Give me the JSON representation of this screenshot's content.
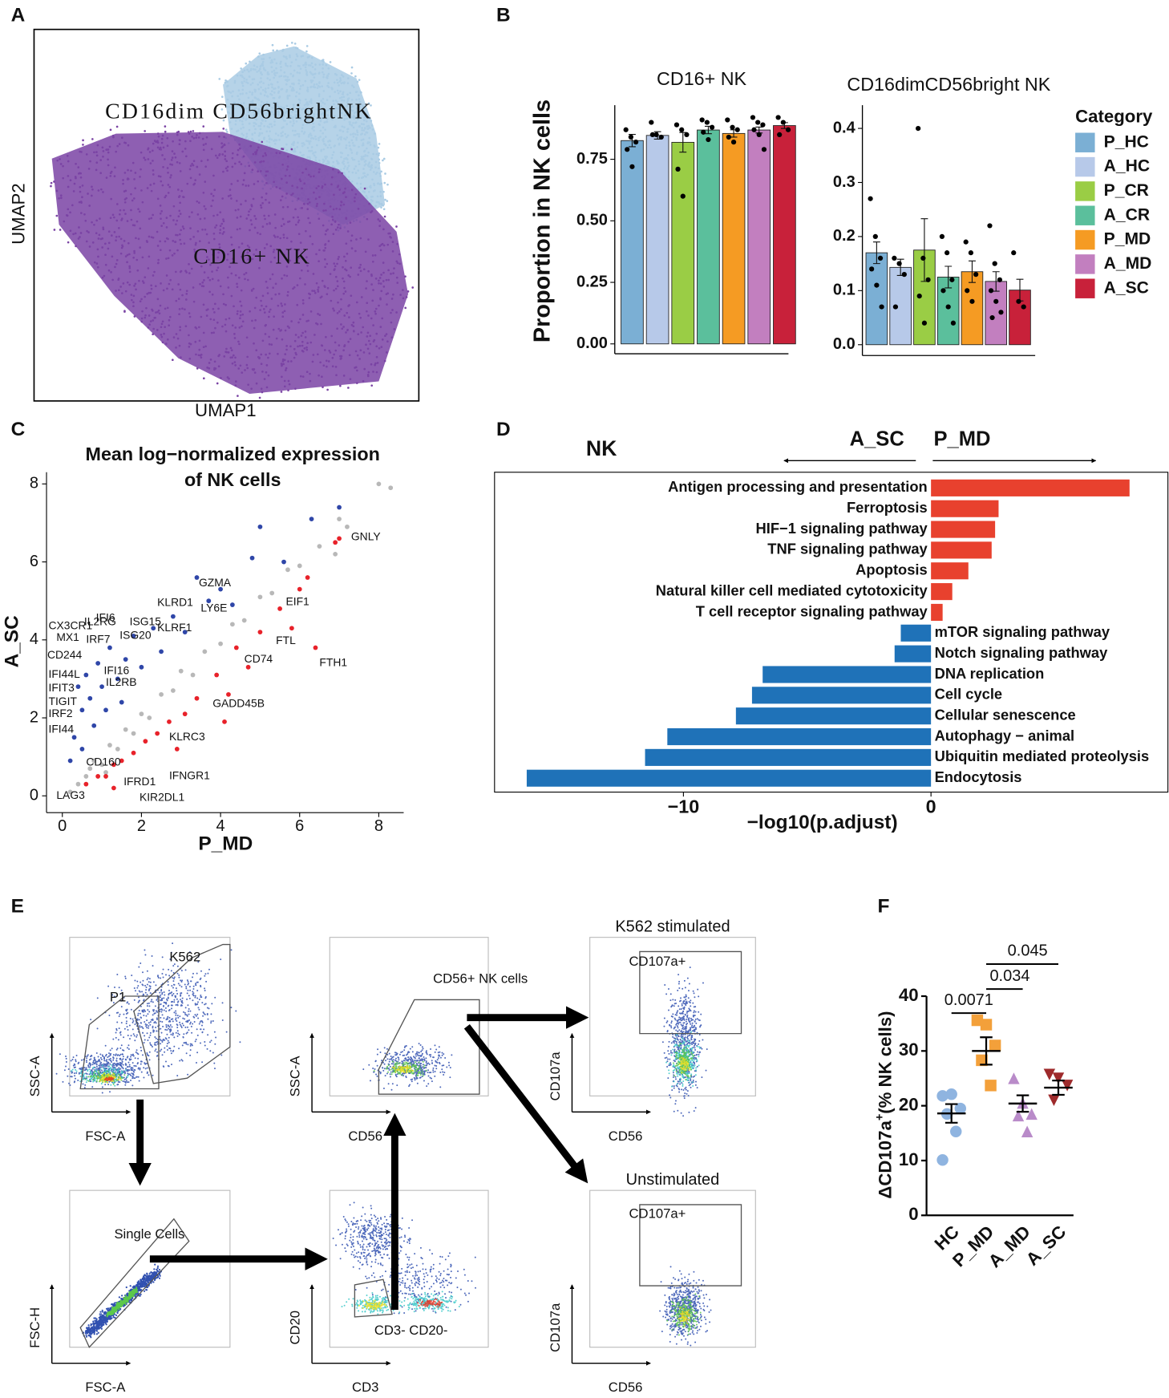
{
  "panel_labels": [
    "A",
    "B",
    "C",
    "D",
    "E",
    "F"
  ],
  "legend": {
    "title": "Category",
    "labels": [
      "P_HC",
      "A_HC",
      "P_CR",
      "A_CR",
      "P_MD",
      "A_MD",
      "A_SC"
    ],
    "colors": [
      "#7bafd4",
      "#b7c9e9",
      "#9acd45",
      "#5bbf9c",
      "#f59b23",
      "#c27fbf",
      "#c8213a"
    ]
  },
  "chart_data": [
    {
      "type": "embedding",
      "x_label": "UMAP1",
      "y_label": "UMAP2",
      "clusters": [
        {
          "name": "CD16dim CD56brightNK",
          "color": "#a9cbe4"
        },
        {
          "name": "CD16+ NK",
          "color": "#7a43a4"
        }
      ]
    },
    {
      "type": "bar",
      "title": "CD16+ NK",
      "y_label": "Proportion in NK cells",
      "values": [
        0.826,
        0.847,
        0.819,
        0.869,
        0.855,
        0.869,
        0.887
      ],
      "errors": [
        0.025,
        0.015,
        0.04,
        0.015,
        0.015,
        0.012,
        0.012
      ],
      "points": [
        [
          0.87,
          0.84,
          0.82,
          0.79,
          0.72
        ],
        [
          0.9,
          0.85,
          0.84,
          0.85
        ],
        [
          0.89,
          0.87,
          0.85,
          0.71,
          0.6
        ],
        [
          0.91,
          0.9,
          0.88,
          0.86,
          0.83
        ],
        [
          0.91,
          0.88,
          0.87,
          0.84,
          0.82
        ],
        [
          0.92,
          0.9,
          0.89,
          0.87,
          0.85,
          0.79
        ],
        [
          0.92,
          0.9,
          0.87,
          0.85
        ]
      ],
      "ylim": [
        -0.04,
        0.97
      ],
      "yticks": [
        {
          "value": 0,
          "label": "0.00"
        },
        0.25,
        {
          "value": 0.5,
          "label": "0.50"
        },
        0.75
      ]
    },
    {
      "type": "bar",
      "title": "CD16dimCD56bright NK",
      "values": [
        0.17,
        0.143,
        0.175,
        0.125,
        0.135,
        0.117,
        0.101
      ],
      "errors": [
        0.02,
        0.015,
        0.058,
        0.02,
        0.02,
        0.018,
        0.02
      ],
      "points": [
        [
          0.27,
          0.2,
          0.16,
          0.14,
          0.11,
          0.07
        ],
        [
          0.16,
          0.15,
          0.13,
          0.07
        ],
        [
          0.4,
          0.16,
          0.12,
          0.09,
          0.04
        ],
        [
          0.2,
          0.17,
          0.12,
          0.1,
          0.07,
          0.04
        ],
        [
          0.19,
          0.17,
          0.13,
          0.1,
          0.08
        ],
        [
          0.22,
          0.15,
          0.12,
          0.1,
          0.08,
          0.06,
          0.05
        ],
        [
          0.17,
          0.08,
          0.07
        ]
      ],
      "ylim": [
        -0.02,
        0.443
      ],
      "yticks": [
        {
          "value": 0,
          "label": "0.0"
        },
        0.1,
        0.2,
        0.3,
        0.4
      ]
    },
    {
      "type": "scatter",
      "title": [
        "Mean log−normalized expression",
        "of NK cells"
      ],
      "x_label": "P_MD",
      "y_label": "A_SC",
      "xlim": [
        -0.4,
        8.63
      ],
      "ylim": [
        -0.43,
        8.3
      ],
      "xticks": [
        0,
        2,
        4,
        6,
        8
      ],
      "yticks": [
        0,
        2,
        4,
        6,
        8
      ],
      "series": [
        {
          "color": "#b8b8b8",
          "x": [
            0.2,
            0.4,
            0.6,
            0.8,
            1,
            1.2,
            1.4,
            1.6,
            1.8,
            2,
            2.2,
            2.5,
            2.8,
            3,
            3.3,
            3.6,
            4,
            4.3,
            4.6,
            5,
            5.3,
            5.7,
            6,
            6.5,
            7,
            8,
            8.3,
            6.9,
            7.2,
            1.1,
            0.7
          ],
          "y": [
            0.1,
            0.3,
            0.5,
            0.9,
            0.8,
            1.3,
            1.2,
            1.7,
            1.6,
            2.1,
            2,
            2.6,
            2.7,
            3.2,
            3.1,
            3.7,
            3.9,
            4.4,
            4.5,
            5.1,
            5.2,
            5.8,
            5.9,
            6.4,
            7.1,
            8,
            7.9,
            6.2,
            6.9,
            0.6,
            0.7
          ]
        },
        {
          "color": "#2f46a8",
          "x": [
            0.3,
            0.5,
            0.4,
            0.6,
            0.7,
            0.9,
            1,
            1.2,
            0.8,
            1.1,
            1.4,
            1.6,
            1.8,
            2,
            2.3,
            2.5,
            2.8,
            3.1,
            3.4,
            3.7,
            4,
            4.3,
            4.8,
            5,
            5.6,
            6.3,
            7,
            0.2,
            0.5,
            1.5
          ],
          "y": [
            1.5,
            2.2,
            2.8,
            3.1,
            2.5,
            3.4,
            2.8,
            3.8,
            1.8,
            2.2,
            3,
            3.5,
            4.1,
            3.3,
            4.3,
            3.7,
            4.6,
            4.2,
            5.6,
            5,
            5.3,
            4.9,
            6.1,
            6.9,
            6,
            7.1,
            7.4,
            0.9,
            1.2,
            2.4
          ]
        },
        {
          "color": "#e8222a",
          "x": [
            0.6,
            0.9,
            1.1,
            1.3,
            1.5,
            1.8,
            2.1,
            2.4,
            2.7,
            3.1,
            3.4,
            3.9,
            4.2,
            4.4,
            4.7,
            5,
            5.5,
            5.8,
            6,
            6.2,
            6.4,
            6.9,
            7,
            4.1,
            2.9,
            1.3
          ],
          "y": [
            0.3,
            0.5,
            0.5,
            0.8,
            0.9,
            1.1,
            1.4,
            1.6,
            1.9,
            2.1,
            2.5,
            3.1,
            2.6,
            3.8,
            3.3,
            4.2,
            4.8,
            4.3,
            5.3,
            5.6,
            3.8,
            6.5,
            6.6,
            1.9,
            1.2,
            0.2
          ]
        }
      ],
      "annotations": [
        {
          "text": "GNLY",
          "x": 7.3,
          "y": 6.63,
          "series": 2
        },
        {
          "text": "EIF1",
          "x": 5.65,
          "y": 4.97,
          "series": 2
        },
        {
          "text": "FTL",
          "x": 5.4,
          "y": 3.97,
          "series": 2
        },
        {
          "text": "CD74",
          "x": 4.6,
          "y": 3.5,
          "series": 2
        },
        {
          "text": "FTH1",
          "x": 6.5,
          "y": 3.4,
          "series": 2
        },
        {
          "text": "GADD45B",
          "x": 3.8,
          "y": 2.35,
          "series": 2
        },
        {
          "text": "KLRC3",
          "x": 2.7,
          "y": 1.5,
          "series": 2
        },
        {
          "text": "IFNGR1",
          "x": 2.7,
          "y": 0.5,
          "series": 2
        },
        {
          "text": "IFRD1",
          "x": 1.55,
          "y": 0.35,
          "series": 2
        },
        {
          "text": "KIR2DL1",
          "x": 1.95,
          "y": -0.05,
          "series": 2
        },
        {
          "text": "GZMA",
          "x": 3.45,
          "y": 5.45,
          "series": 1
        },
        {
          "text": "KLRD1",
          "x": 2.4,
          "y": 4.95,
          "series": 1
        },
        {
          "text": "LY6E",
          "x": 3.5,
          "y": 4.8,
          "series": 1
        },
        {
          "text": "KLRF1",
          "x": 2.4,
          "y": 4.3,
          "series": 1
        },
        {
          "text": "ISG15",
          "x": 1.7,
          "y": 4.45,
          "series": 1
        },
        {
          "text": "ISG20",
          "x": 1.45,
          "y": 4.1,
          "series": 1
        },
        {
          "text": "IFI6",
          "x": 0.85,
          "y": 4.55,
          "series": 1
        },
        {
          "text": "CX3CR1",
          "x": -0.35,
          "y": 4.35,
          "series": 1
        },
        {
          "text": "IL2RG",
          "x": 0.55,
          "y": 4.45,
          "series": 1
        },
        {
          "text": "MX1",
          "x": -0.15,
          "y": 4.05,
          "series": 1
        },
        {
          "text": "IRF7",
          "x": 0.6,
          "y": 4.0,
          "series": 1
        },
        {
          "text": "CD244",
          "x": -0.38,
          "y": 3.6,
          "series": 1
        },
        {
          "text": "IFI16",
          "x": 1.05,
          "y": 3.2,
          "series": 1
        },
        {
          "text": "IL2RB",
          "x": 1.1,
          "y": 2.9,
          "series": 1
        },
        {
          "text": "IFI44L",
          "x": -0.35,
          "y": 3.1,
          "series": 1
        },
        {
          "text": "IFIT3",
          "x": -0.35,
          "y": 2.75,
          "series": 1
        },
        {
          "text": "TIGIT",
          "x": -0.35,
          "y": 2.4,
          "series": 1
        },
        {
          "text": "IRF2",
          "x": -0.35,
          "y": 2.1,
          "series": 1
        },
        {
          "text": "IFI44",
          "x": -0.35,
          "y": 1.7,
          "series": 1
        },
        {
          "text": "CD160",
          "x": 0.6,
          "y": 0.85,
          "series": 1
        },
        {
          "text": "LAG3",
          "x": -0.15,
          "y": 0.0,
          "series": 1
        }
      ]
    },
    {
      "type": "hbar",
      "header": "NK",
      "left_label": "A_SC",
      "right_label": "P_MD",
      "x_label": "−log10(p.adjust)",
      "categories": [
        "Antigen processing and presentation",
        "Ferroptosis",
        "HIF−1 signaling pathway",
        "TNF signaling pathway",
        "Apoptosis",
        "Natural killer cell mediated cytotoxicity",
        "T cell receptor signaling pathway",
        "mTOR signaling pathway",
        "Notch signaling pathway",
        "DNA replication",
        "Cell cycle",
        "Cellular senescence",
        "Autophagy − animal",
        "Ubiquitin mediated proteolysis",
        "Endocytosis"
      ],
      "values": [
        8.02,
        2.73,
        2.59,
        2.45,
        1.51,
        0.86,
        0.47,
        -1.22,
        -1.47,
        -6.8,
        -7.23,
        -7.88,
        -10.65,
        -11.55,
        -16.33
      ],
      "positive_color": "#e8412e",
      "negative_color": "#1f72b8",
      "xlim": [
        -17.63,
        9.57
      ],
      "xticks": [
        {
          "value": -10,
          "label": "−10"
        },
        0
      ]
    },
    {
      "type": "dot",
      "y_label_parts": [
        "ΔCD107a",
        "+",
        "(% NK cells)"
      ],
      "categories": [
        "HC",
        "P_MD",
        "A_MD",
        "A_SC"
      ],
      "colors": [
        "#8fb4e0",
        "#f3a03a",
        "#b98bc9",
        "#9e2a2b"
      ],
      "markers": [
        "circle",
        "square",
        "triangle-up",
        "triangle-down"
      ],
      "points": [
        [
          21.8,
          22.1,
          19.5,
          18.5,
          15.3,
          10.1
        ],
        [
          35.6,
          34.8,
          31,
          28.3,
          23.7
        ],
        [
          25,
          20.5,
          18.5,
          18.2,
          15.3
        ],
        [
          25.7,
          25,
          23.7,
          21
        ]
      ],
      "means": [
        18.6,
        30,
        20.4,
        23.3
      ],
      "sems": [
        1.7,
        2.5,
        1.5,
        1.3
      ],
      "ylim": [
        0,
        40
      ],
      "yticks": [
        0,
        10,
        20,
        30,
        40
      ],
      "comparisons": [
        {
          "from": 0,
          "to": 1,
          "p": 0.0071
        },
        {
          "from": 1,
          "to": 2,
          "p": 0.034
        },
        {
          "from": 1,
          "to": 3,
          "p": 0.045
        }
      ]
    }
  ],
  "flow": {
    "panels": [
      {
        "x_label": "FSC-A",
        "y_label": "SSC-A",
        "gates": [
          "K562",
          "P1"
        ]
      },
      {
        "x_label": "CD56",
        "y_label": "SSC-A",
        "gates": [
          "CD56+ NK cells"
        ]
      },
      {
        "title": "K562 stimulated",
        "x_label": "CD56",
        "y_label": "CD107a",
        "gates": [
          "CD107a+"
        ]
      },
      {
        "x_label": "FSC-A",
        "y_label": "FSC-H",
        "gates": [
          "Single Cells"
        ]
      },
      {
        "x_label": "CD3",
        "y_label": "CD20",
        "gates": [
          "CD3- CD20-"
        ]
      },
      {
        "title": "Unstimulated",
        "x_label": "CD56",
        "y_label": "CD107a",
        "gates": [
          "CD107a+"
        ]
      }
    ]
  }
}
